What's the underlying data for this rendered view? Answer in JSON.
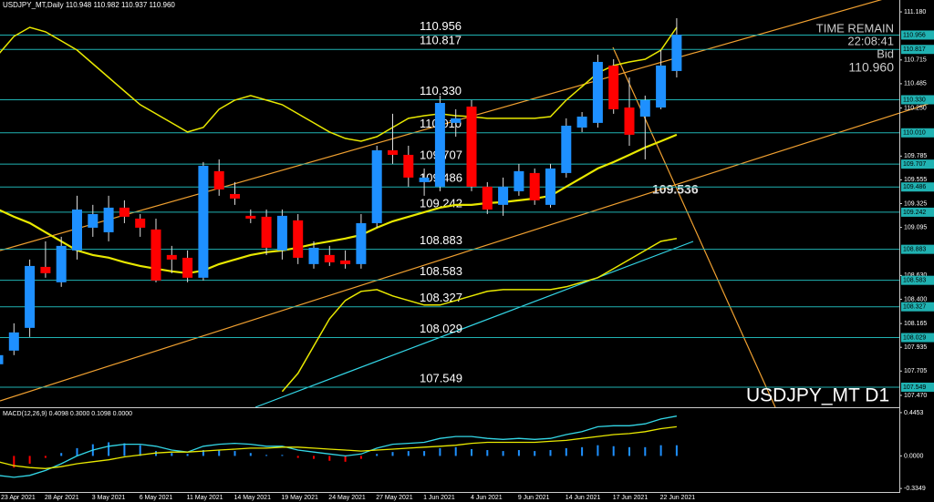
{
  "chart_data": {
    "type": "candlestick",
    "title": "USDJPY_MT,Daily  110.948 110.982 110.937 110.960",
    "watermark": "USDJPY_MT D1",
    "info": [
      "TIME REMAIN",
      "22:08:41",
      "Bid",
      "110.960"
    ],
    "annotation": "109.536",
    "categories": [
      "23 Apr 2021",
      null,
      null,
      "28 Apr 2021",
      null,
      null,
      "3 May 2021",
      null,
      null,
      "6 May 2021",
      null,
      null,
      "11 May 2021",
      null,
      null,
      "14 May 2021",
      null,
      null,
      "19 May 2021",
      null,
      null,
      "24 May 2021",
      null,
      null,
      "27 May 2021",
      null,
      null,
      "1 Jun 2021",
      null,
      null,
      "4 Jun 2021",
      null,
      null,
      "9 Jun 2021",
      null,
      null,
      "14 Jun 2021",
      null,
      null,
      "17 Jun 2021",
      null,
      null,
      "22 Jun 2021",
      null
    ],
    "open": [
      107.771,
      107.903,
      108.123,
      108.713,
      108.564,
      108.872,
      109.092,
      109.048,
      109.286,
      109.18,
      109.075,
      108.828,
      108.801,
      108.608,
      109.639,
      109.418,
      109.207,
      109.198,
      108.872,
      109.163,
      108.74,
      108.828,
      108.775,
      108.74,
      109.136,
      109.841,
      109.797,
      109.533,
      109.489,
      110.106,
      110.264,
      109.489,
      109.313,
      109.445,
      109.621,
      109.313,
      109.621,
      110.061,
      110.106,
      110.661,
      110.255,
      110.167,
      110.255,
      110.608
    ],
    "high": [
      107.903,
      108.167,
      108.784,
      108.96,
      109.004,
      109.401,
      109.313,
      109.401,
      109.357,
      109.224,
      109.18,
      108.916,
      108.872,
      109.727,
      109.753,
      109.533,
      109.268,
      109.268,
      109.268,
      109.224,
      108.96,
      108.916,
      108.872,
      109.224,
      109.885,
      110.194,
      109.885,
      109.665,
      110.37,
      110.238,
      110.326,
      109.533,
      109.577,
      109.709,
      109.665,
      109.709,
      110.15,
      110.211,
      110.766,
      110.722,
      110.546,
      110.37,
      110.81,
      111.119
    ],
    "low": [
      107.727,
      107.859,
      108.035,
      108.608,
      108.52,
      108.784,
      109.004,
      108.96,
      109.136,
      109.004,
      108.564,
      108.652,
      108.564,
      108.581,
      109.401,
      109.313,
      109.136,
      108.828,
      108.784,
      108.74,
      108.696,
      108.722,
      108.696,
      108.696,
      109.092,
      109.709,
      109.489,
      109.401,
      109.445,
      109.973,
      109.445,
      109.224,
      109.207,
      109.401,
      109.313,
      109.286,
      109.577,
      110.017,
      110.061,
      110.194,
      109.885,
      109.753,
      110.238,
      110.546
    ],
    "close": [
      107.859,
      108.079,
      108.722,
      108.652,
      108.916,
      109.268,
      109.224,
      109.286,
      109.198,
      109.092,
      108.581,
      108.784,
      108.608,
      109.691,
      109.462,
      109.374,
      109.18,
      108.898,
      109.207,
      108.801,
      108.898,
      108.757,
      108.74,
      109.136,
      109.841,
      109.797,
      109.577,
      109.577,
      110.299,
      110.15,
      109.489,
      109.268,
      109.489,
      109.639,
      109.357,
      109.665,
      110.079,
      110.167,
      110.696,
      110.238,
      109.991,
      110.326,
      110.661,
      110.96
    ],
    "up_color": "#1e90ff",
    "down_color": "#ff0000",
    "overlays": [
      {
        "color": "#e8e800",
        "width": 2.2,
        "values": [
          109.269,
          109.198,
          109.137,
          109.048,
          108.96,
          108.872,
          108.828,
          108.802,
          108.758,
          108.722,
          108.696,
          108.67,
          108.652,
          108.678,
          108.74,
          108.784,
          108.828,
          108.855,
          108.872,
          108.899,
          108.934,
          108.96,
          108.987,
          109.022,
          109.092,
          109.154,
          109.198,
          109.242,
          109.286,
          109.313,
          109.313,
          109.33,
          109.339,
          109.357,
          109.374,
          109.401,
          109.489,
          109.577,
          109.665,
          109.727,
          109.797,
          109.868,
          109.929,
          109.991
        ]
      },
      {
        "color": "#e8e800",
        "width": 1.5,
        "values": [
          110.766,
          110.943,
          111.031,
          110.987,
          110.899,
          110.81,
          110.678,
          110.546,
          110.414,
          110.282,
          110.194,
          110.106,
          110.018,
          110.062,
          110.238,
          110.326,
          110.37,
          110.326,
          110.282,
          110.194,
          110.106,
          110.018,
          109.956,
          109.929,
          109.973,
          110.062,
          110.15,
          110.176,
          110.194,
          110.176,
          110.167,
          110.15,
          110.15,
          110.15,
          110.15,
          110.167,
          110.326,
          110.458,
          110.59,
          110.661,
          110.696,
          110.722,
          110.81,
          111.031
        ]
      },
      {
        "color": "#e8e800",
        "width": 1.5,
        "values": [
          null,
          null,
          null,
          null,
          null,
          null,
          null,
          null,
          null,
          null,
          null,
          null,
          null,
          null,
          null,
          null,
          null,
          null,
          107.507,
          107.683,
          107.947,
          108.211,
          108.388,
          108.476,
          108.493,
          108.432,
          108.388,
          108.344,
          108.344,
          108.388,
          108.432,
          108.476,
          108.493,
          108.493,
          108.493,
          108.493,
          108.52,
          108.564,
          108.608,
          108.696,
          108.784,
          108.872,
          108.96,
          108.987
        ]
      }
    ],
    "ylim": [
      107.355,
      111.295
    ],
    "yticks": [
      {
        "value": 111.18,
        "label": "111.180"
      },
      110.715,
      110.485,
      {
        "value": 110.25,
        "label": "110.250"
      },
      109.785,
      109.555,
      109.325,
      109.095,
      {
        "value": 108.63,
        "label": "108.630"
      },
      {
        "value": 108.4,
        "label": "108.400"
      },
      108.165,
      107.935,
      107.705,
      {
        "value": 107.47,
        "label": "107.470"
      }
    ],
    "levels": [
      110.956,
      110.817,
      {
        "value": 110.33,
        "label": "110.330"
      },
      {
        "value": 110.01,
        "label": "110.010"
      },
      109.707,
      109.486,
      109.242,
      108.883,
      108.583,
      108.327,
      108.029,
      107.549
    ],
    "level_color": "#20b2b2",
    "macd": {
      "label": "MACD(12,26,9) 0.4098 0.3000 0.1098 0.0000",
      "ylim": [
        -0.371,
        0.482
      ],
      "yticks": [
        0.4453,
        {
          "value": 0,
          "label": "0.0000"
        },
        -0.3349
      ],
      "histogram": [
        -0.14,
        -0.12,
        -0.08,
        -0.02,
        0.03,
        0.08,
        0.12,
        0.14,
        0.13,
        0.11,
        0.05,
        0.03,
        0.02,
        0.06,
        0.06,
        0.05,
        0.03,
        0.01,
        0.01,
        -0.02,
        -0.03,
        -0.05,
        -0.06,
        -0.03,
        0.02,
        0.04,
        0.05,
        0.05,
        0.08,
        0.09,
        0.07,
        0.06,
        0.05,
        0.06,
        0.05,
        0.06,
        0.08,
        0.09,
        0.11,
        0.1,
        0.09,
        0.09,
        0.11,
        0.1098
      ],
      "series": [
        {
          "color": "#33d6e6",
          "values": [
            -0.2,
            -0.22,
            -0.2,
            -0.15,
            -0.08,
            0.0,
            0.06,
            0.1,
            0.12,
            0.12,
            0.1,
            0.06,
            0.04,
            0.1,
            0.12,
            0.13,
            0.12,
            0.1,
            0.1,
            0.06,
            0.04,
            0.02,
            0.0,
            0.02,
            0.08,
            0.12,
            0.13,
            0.14,
            0.18,
            0.2,
            0.2,
            0.18,
            0.17,
            0.18,
            0.17,
            0.18,
            0.22,
            0.25,
            0.3,
            0.31,
            0.31,
            0.33,
            0.38,
            0.4098
          ]
        },
        {
          "color": "#e8e800",
          "values": [
            -0.06,
            -0.1,
            -0.12,
            -0.13,
            -0.11,
            -0.08,
            -0.06,
            -0.04,
            -0.01,
            0.01,
            0.03,
            0.04,
            0.04,
            0.05,
            0.06,
            0.07,
            0.08,
            0.08,
            0.09,
            0.09,
            0.08,
            0.07,
            0.06,
            0.05,
            0.06,
            0.07,
            0.08,
            0.09,
            0.1,
            0.11,
            0.13,
            0.14,
            0.14,
            0.14,
            0.14,
            0.15,
            0.16,
            0.18,
            0.2,
            0.22,
            0.23,
            0.25,
            0.28,
            0.3
          ]
        }
      ]
    }
  }
}
